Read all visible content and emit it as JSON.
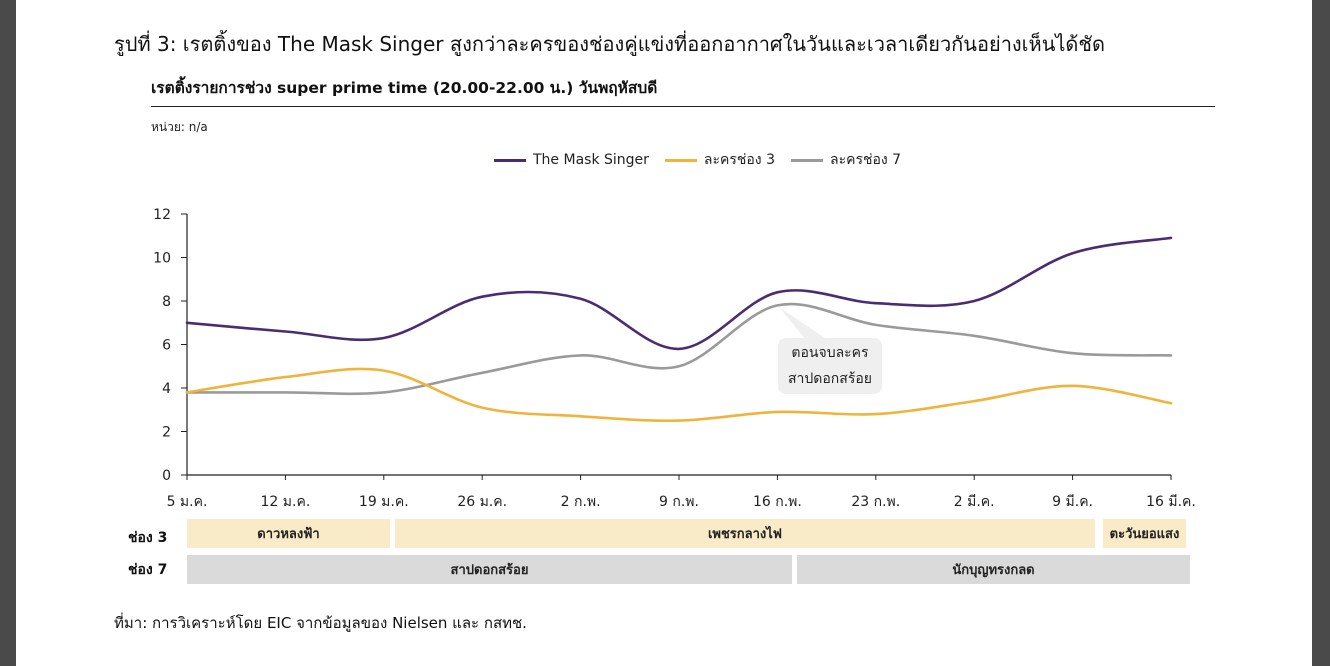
{
  "figure": {
    "title": "รูปที่ 3: เรตติ้งของ The Mask Singer สูงกว่าละครของช่องคู่แข่งที่ออกอากาศในวันและเวลาเดียวกันอย่างเห็นได้ชัด",
    "subtitle": "เรตติ้งรายการช่วง super prime time (20.00-22.00 น.) วันพฤหัสบดี",
    "unit": "หน่วย: n/a",
    "source": "ที่มา: การวิเคราะห์โดย EIC จากข้อมูลของ Nielsen และ กสทช."
  },
  "annotation": {
    "line1": "ตอนจบละคร",
    "line2": "สาปดอกสร้อย"
  },
  "schedule": {
    "ch3_label": "ช่อง 3",
    "ch7_label": "ช่อง 7",
    "ch3_programs": [
      "ดาวหลงฟ้า",
      "เพชรกลางไฟ",
      "ตะวันยอแสง"
    ],
    "ch7_programs": [
      "สาปดอกสร้อย",
      "นักบุญทรงกลด"
    ],
    "colors": {
      "ch3": "#faebc8",
      "ch7": "#dadada"
    }
  },
  "chart_data": {
    "type": "line",
    "x": [
      "5 ม.ค.",
      "12 ม.ค.",
      "19 ม.ค.",
      "26 ม.ค.",
      "2 ก.พ.",
      "9 ก.พ.",
      "16 ก.พ.",
      "23 ก.พ.",
      "2 มี.ค.",
      "9 มี.ค.",
      "16 มี.ค."
    ],
    "ylim": [
      0,
      12
    ],
    "yticks": [
      0,
      2,
      4,
      6,
      8,
      10,
      12
    ],
    "grid": false,
    "legend_position": "top",
    "series": [
      {
        "name": "The Mask Singer",
        "color": "#4b2c73",
        "values": [
          7.0,
          6.6,
          6.3,
          8.2,
          8.1,
          5.8,
          8.4,
          7.9,
          8.0,
          10.2,
          10.9
        ]
      },
      {
        "name": "ละครช่อง 3",
        "color": "#f0b43c",
        "values": [
          3.8,
          4.5,
          4.8,
          3.1,
          2.7,
          2.5,
          2.9,
          2.8,
          3.4,
          4.1,
          3.3
        ]
      },
      {
        "name": "ละครช่อง 7",
        "color": "#9a9a9a",
        "values": [
          3.8,
          3.8,
          3.8,
          4.7,
          5.5,
          5.0,
          7.8,
          6.9,
          6.4,
          5.6,
          5.5
        ]
      }
    ]
  }
}
